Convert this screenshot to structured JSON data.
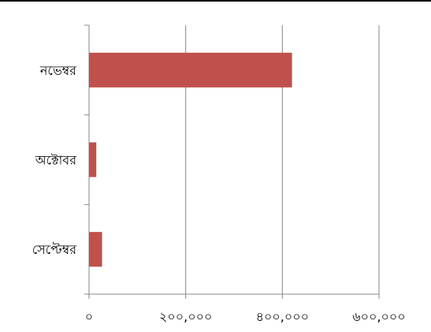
{
  "chart_data": {
    "type": "bar",
    "orientation": "horizontal",
    "categories": [
      "সেপ্টেম্বর",
      "অক্টোবর",
      "নভেম্বর"
    ],
    "values": [
      27000,
      15000,
      420000
    ],
    "xlim": [
      0,
      600000
    ],
    "x_ticks": [
      0,
      200000,
      400000,
      600000
    ],
    "x_tick_labels": [
      "০",
      "২০০,০০০",
      "৪০০,০০০",
      "৬০০,০০০"
    ],
    "title": "",
    "xlabel": "",
    "ylabel": "",
    "grid": "vertical",
    "legend": "none",
    "bar_color": "#C0504D",
    "grid_color": "#878787",
    "axis_color": "#878787"
  }
}
